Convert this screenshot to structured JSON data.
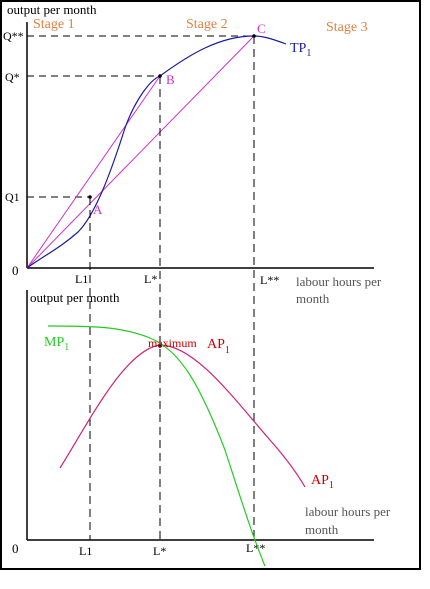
{
  "top_panel": {
    "y_title": "output per month",
    "x_title_line1": "labour hours per",
    "x_title_line2": "month",
    "origin": "0",
    "stages": [
      "Stage 1",
      "Stage 2",
      "Stage 3"
    ],
    "y_ticks": [
      "Q**",
      "Q*",
      "Q1"
    ],
    "x_ticks": [
      "L1",
      "L*",
      "L**"
    ],
    "points": [
      "A",
      "B",
      "C"
    ],
    "curve_label": "TP",
    "curve_label_sub": "1"
  },
  "bottom_panel": {
    "y_title": "output per month",
    "x_title_line1": "labour hours per",
    "x_title_line2": "month",
    "origin": "0",
    "x_ticks": [
      "L1",
      "L*",
      "L**"
    ],
    "mp_label": "MP",
    "mp_label_sub": "1",
    "max_label_word": "maximum",
    "max_label_ap": "AP",
    "max_label_sub": "1",
    "ap_label": "AP",
    "ap_label_sub": "1"
  },
  "colors": {
    "stage": "#e08040",
    "tp_curve": "#1a1aa0",
    "ray": "#cc33cc",
    "point_label": "#cc33cc",
    "mp_curve": "#22cc22",
    "ap_curve": "#cc2277",
    "ap_label": "#cc0000",
    "axis": "#000000"
  }
}
